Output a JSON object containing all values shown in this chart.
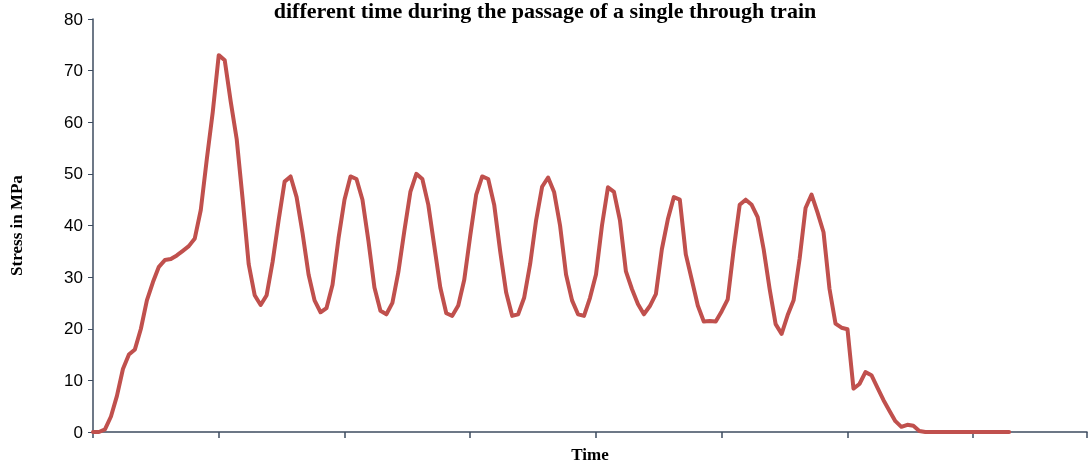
{
  "chart_data": {
    "type": "line",
    "title": "different time during the passage of a single through train",
    "xlabel": "Time",
    "ylabel": "Stress in MPa",
    "grid": false,
    "marker": "none",
    "line_style": "solid",
    "categories": [
      null,
      null,
      null,
      null,
      null,
      null,
      null,
      null,
      null,
      null,
      null,
      null,
      null,
      null,
      null,
      null,
      null,
      null,
      null,
      null,
      null,
      null,
      null,
      null,
      null,
      null,
      null,
      null,
      null,
      null,
      null,
      null,
      null,
      null,
      null,
      null,
      null,
      null,
      null,
      null,
      null,
      null,
      null,
      null,
      null,
      null,
      null,
      null,
      null,
      null,
      null,
      null,
      null,
      null,
      null,
      null,
      null,
      null,
      null,
      null,
      null,
      null,
      null,
      null,
      null,
      null,
      null,
      null,
      null,
      null,
      null,
      null,
      null,
      null,
      null,
      null,
      null,
      null,
      null,
      null,
      null,
      null,
      null,
      null,
      null,
      null,
      null,
      null,
      null,
      null,
      null,
      null,
      null,
      null,
      null,
      null,
      null,
      null,
      null,
      null,
      null,
      null,
      null,
      null,
      null,
      null,
      null,
      null,
      null,
      null,
      null,
      null,
      null,
      null,
      null,
      null,
      null,
      null,
      null,
      null,
      null,
      null,
      null,
      null,
      null,
      null,
      null,
      null,
      null,
      null,
      null,
      null,
      null,
      null,
      null,
      null,
      null,
      null,
      null,
      null,
      null,
      null,
      null,
      null,
      null,
      null,
      null,
      null,
      null,
      null,
      null,
      null,
      null,
      null,
      null,
      null,
      null,
      null,
      null,
      null,
      null,
      null,
      null,
      null,
      null,
      null,
      null
    ],
    "ylim": [
      0,
      80
    ],
    "yticks": [
      0,
      10,
      20,
      30,
      40,
      50,
      60,
      70,
      80
    ],
    "series": [
      {
        "color": "#c0504d",
        "values": [
          0,
          0,
          0.5,
          3,
          7,
          12.2,
          15,
          16,
          20,
          25.5,
          29,
          32,
          33.3,
          33.5,
          34.2,
          35.1,
          36,
          37.5,
          43,
          52.8,
          62,
          73,
          72,
          64,
          56.7,
          45,
          32.5,
          26.5,
          24.6,
          26.5,
          33,
          41,
          48.5,
          49.5,
          45.5,
          38.5,
          30.5,
          25.5,
          23.2,
          24,
          28.5,
          37.5,
          45,
          49.5,
          49,
          45,
          37,
          28,
          23.5,
          22.8,
          25,
          31,
          39,
          46.5,
          50,
          49,
          44,
          36,
          28,
          23,
          22.5,
          24.5,
          29.5,
          38,
          46,
          49.5,
          49,
          44,
          35,
          27,
          22.5,
          22.8,
          26,
          32.5,
          41,
          47.5,
          49.3,
          46.5,
          40,
          30.5,
          25.5,
          22.8,
          22.5,
          26,
          30.5,
          40,
          47.4,
          46.5,
          41,
          31.1,
          27.7,
          24.8,
          22.8,
          24.4,
          26.7,
          35.4,
          41.2,
          45.5,
          45,
          34.4,
          29.5,
          24.5,
          21.4,
          21.5,
          21.4,
          23.4,
          25.7,
          35.4,
          44,
          45,
          44,
          41.6,
          35.4,
          27.7,
          20.9,
          19,
          22.6,
          25.5,
          33.5,
          43.4,
          46,
          42.5,
          38.7,
          27.7,
          21,
          20.2,
          19.9,
          8.4,
          9.3,
          11.6,
          11,
          8.6,
          6.2,
          4.1,
          2.1,
          1,
          1.4,
          1.2,
          0.2,
          0,
          0,
          0,
          0,
          0,
          0,
          0,
          0,
          0,
          0,
          0,
          0,
          0,
          0,
          0,
          null,
          null,
          null,
          null,
          null,
          null,
          null,
          null,
          null,
          null,
          null,
          null,
          null
        ]
      }
    ]
  }
}
